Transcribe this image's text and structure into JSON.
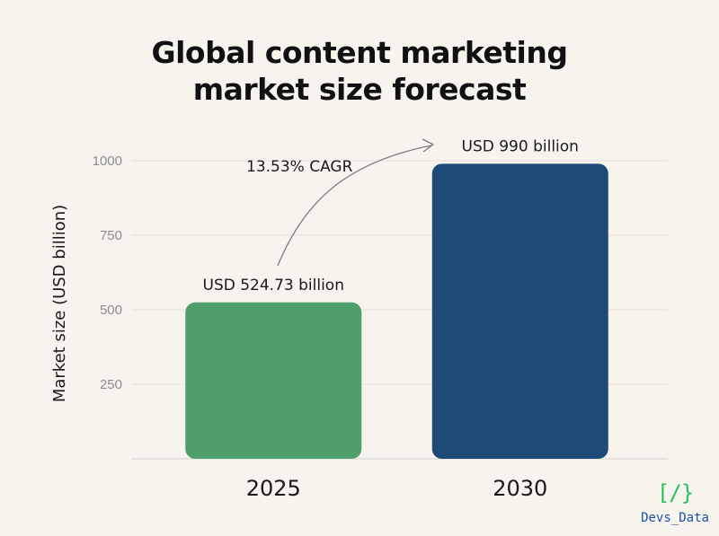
{
  "chart_data": {
    "type": "bar",
    "title_lines": [
      "Global content marketing",
      "market size forecast"
    ],
    "categories": [
      "2025",
      "2030"
    ],
    "values": [
      524.73,
      990
    ],
    "data_labels": [
      "USD 524.73 billion",
      "USD 990 billion"
    ],
    "bar_colors": [
      "#4e9f6b",
      "#1e4a78"
    ],
    "ylabel": "Market size (USD billion)",
    "xlabel": "",
    "ylim": [
      0,
      1000
    ],
    "yticks": [
      250,
      500,
      750,
      1000
    ],
    "grid": true,
    "annotation": "13.53% CAGR"
  },
  "logo": {
    "mark": "[/}",
    "text": "Devs_Data",
    "mark_color": "#2fbf5b",
    "text_color": "#1d4fa8"
  }
}
